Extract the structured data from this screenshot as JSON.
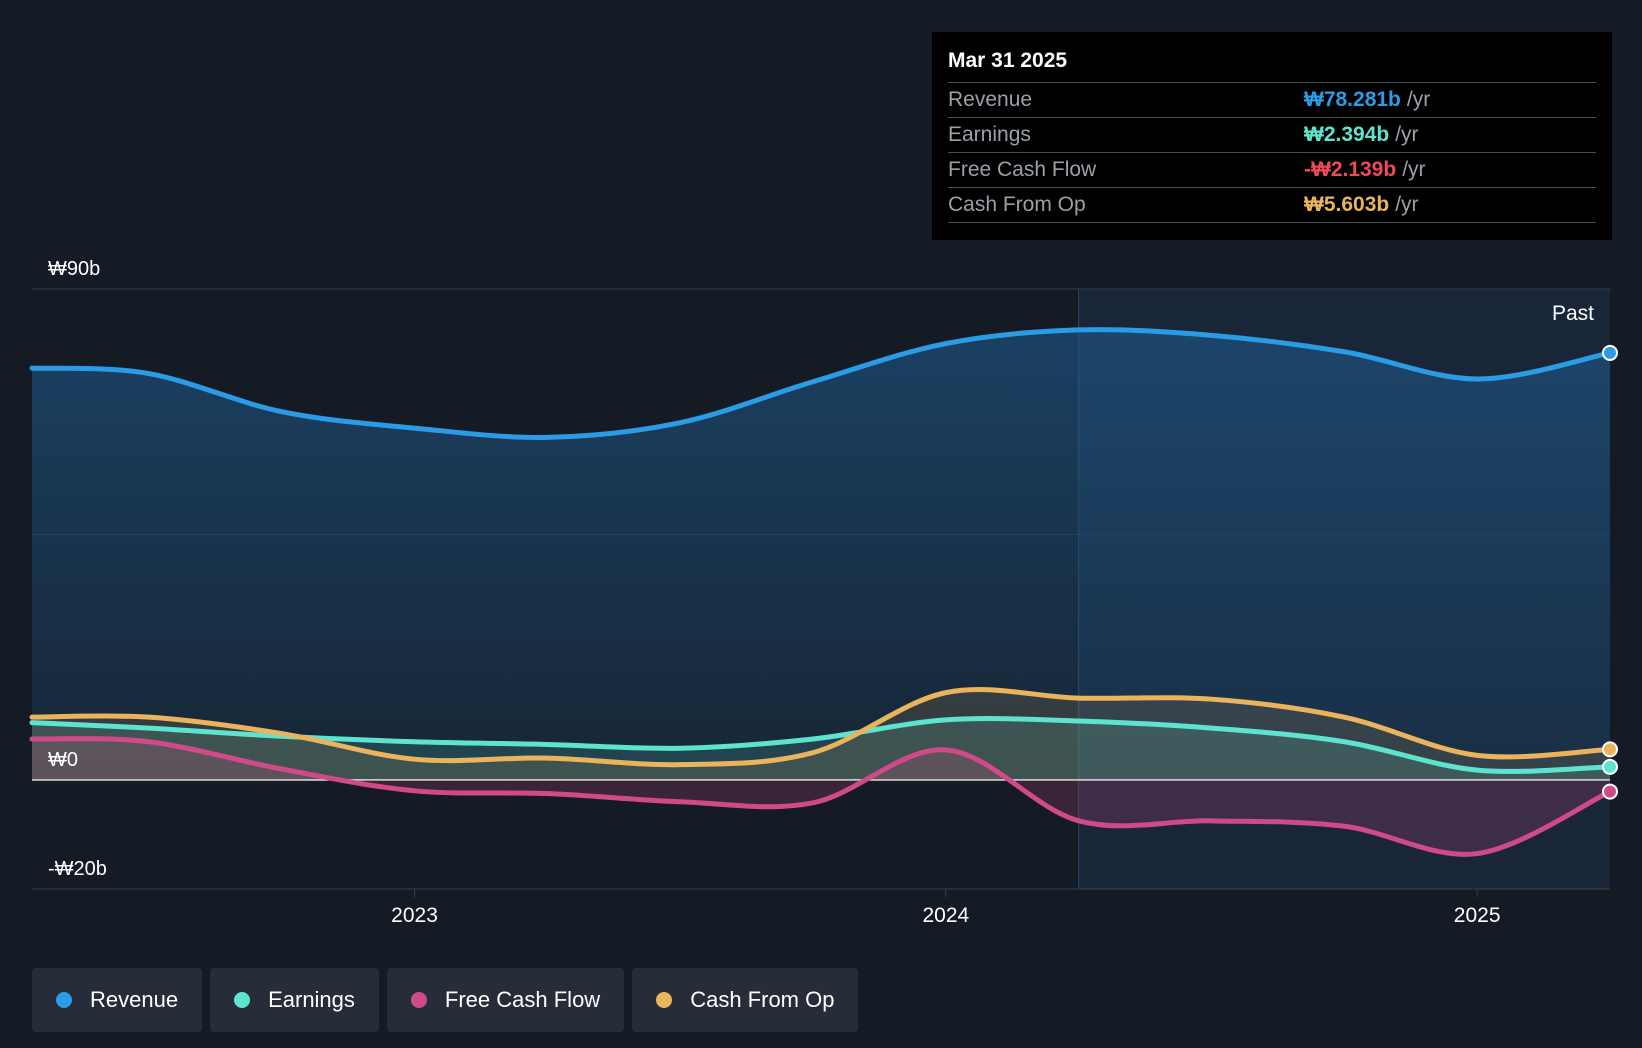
{
  "tooltip": {
    "date": "Mar 31 2025",
    "rows": [
      {
        "name": "Revenue",
        "value": "₩78.281b",
        "unit": "/yr",
        "color": "#2b9be6"
      },
      {
        "name": "Earnings",
        "value": "₩2.394b",
        "unit": "/yr",
        "color": "#5ee3cf"
      },
      {
        "name": "Free Cash Flow",
        "value": "-₩2.139b",
        "unit": "/yr",
        "color": "#ef4a57"
      },
      {
        "name": "Cash From Op",
        "value": "₩5.603b",
        "unit": "/yr",
        "color": "#e9b45c"
      }
    ]
  },
  "past_label": "Past",
  "legend": [
    {
      "label": "Revenue",
      "color": "#2b9be6"
    },
    {
      "label": "Earnings",
      "color": "#5ee3cf"
    },
    {
      "label": "Free Cash Flow",
      "color": "#d04a8a"
    },
    {
      "label": "Cash From Op",
      "color": "#e9b45c"
    }
  ],
  "chart_data": {
    "type": "area",
    "y_tick_labels": [
      "₩90b",
      "₩0",
      "-₩20b"
    ],
    "ylim": [
      -20,
      90
    ],
    "x_tick_labels": [
      "2023",
      "2024",
      "2025"
    ],
    "x_ticks": [
      2023.0,
      2024.0,
      2025.0
    ],
    "xlim": [
      2022.28,
      2025.25
    ],
    "past_start_x": 2024.25,
    "grid": true,
    "legend_position": "bottom",
    "series": [
      {
        "name": "Revenue",
        "color": "#2b9be6",
        "x": [
          2022.28,
          2022.5,
          2022.75,
          2023.0,
          2023.25,
          2023.5,
          2023.75,
          2024.0,
          2024.25,
          2024.5,
          2024.75,
          2025.0,
          2025.25
        ],
        "values": [
          75.5,
          74.5,
          67.5,
          64.5,
          62.8,
          65.5,
          73.0,
          80.0,
          82.5,
          81.5,
          78.5,
          73.5,
          78.281
        ]
      },
      {
        "name": "Earnings",
        "color": "#5ee3cf",
        "x": [
          2022.28,
          2022.5,
          2022.75,
          2023.0,
          2023.25,
          2023.5,
          2023.75,
          2024.0,
          2024.25,
          2024.5,
          2024.75,
          2025.0,
          2025.25
        ],
        "values": [
          10.5,
          9.5,
          8.0,
          7.0,
          6.5,
          5.8,
          7.5,
          11.0,
          10.8,
          9.5,
          7.0,
          1.8,
          2.394
        ]
      },
      {
        "name": "Free Cash Flow",
        "color": "#d04a8a",
        "x": [
          2022.28,
          2022.5,
          2022.75,
          2023.0,
          2023.25,
          2023.5,
          2023.75,
          2024.0,
          2024.25,
          2024.5,
          2024.75,
          2025.0,
          2025.25
        ],
        "values": [
          7.5,
          7.0,
          2.0,
          -2.0,
          -2.5,
          -4.0,
          -4.2,
          5.5,
          -7.5,
          -7.5,
          -8.5,
          -13.5,
          -2.139
        ]
      },
      {
        "name": "Cash From Op",
        "color": "#e9b45c",
        "x": [
          2022.28,
          2022.5,
          2022.75,
          2023.0,
          2023.25,
          2023.5,
          2023.75,
          2024.0,
          2024.25,
          2024.5,
          2024.75,
          2025.0,
          2025.25
        ],
        "values": [
          11.5,
          11.5,
          8.5,
          3.8,
          4.0,
          2.8,
          5.0,
          16.0,
          15.0,
          14.8,
          11.5,
          4.5,
          5.603
        ]
      }
    ]
  }
}
